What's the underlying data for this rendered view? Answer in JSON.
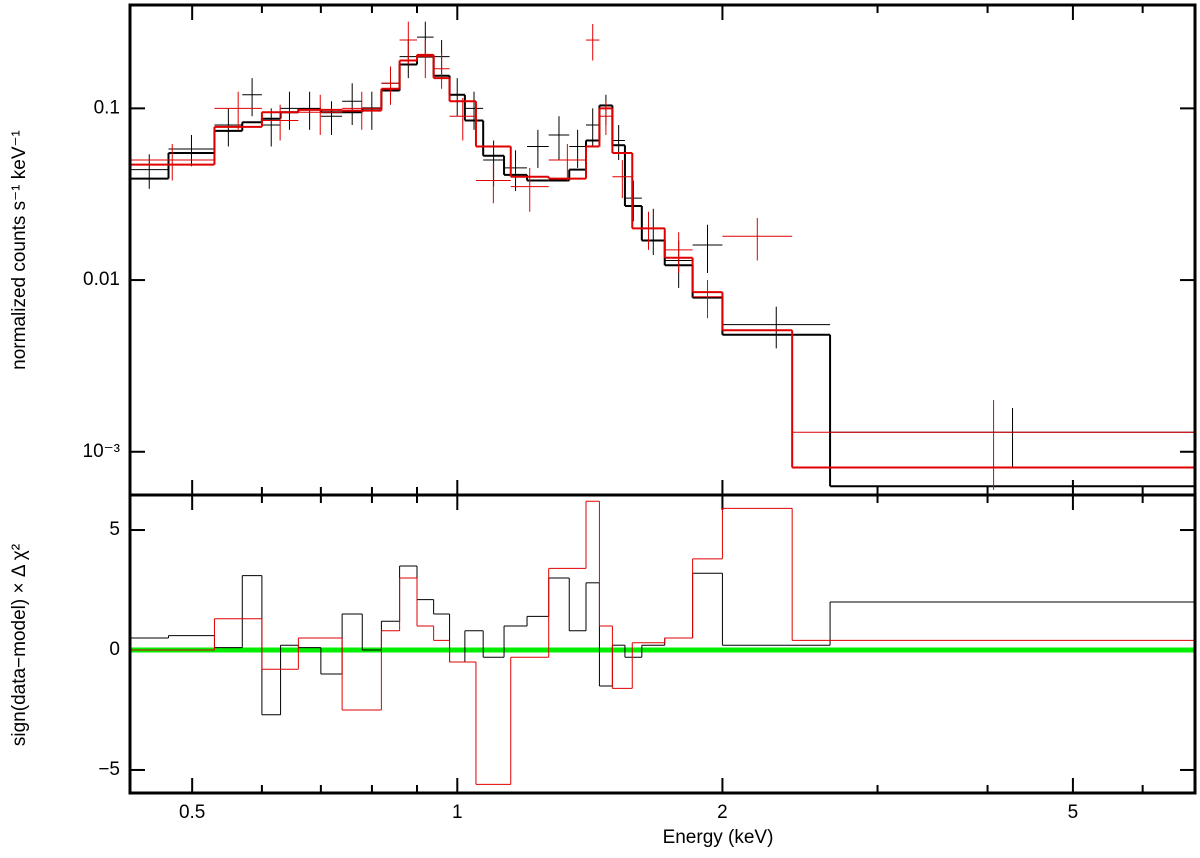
{
  "chart_data": [
    {
      "type": "spectrum",
      "ylabel": "normalized counts s⁻¹ keV⁻¹",
      "xscale": "log",
      "yscale": "log",
      "xlim": [
        0.425,
        6.88
      ],
      "xticks": [
        0.5,
        1,
        2,
        5
      ],
      "xminor": [
        0.6,
        0.7,
        0.8,
        0.9,
        3,
        4,
        6
      ],
      "ylim": [
        0.00056,
        0.4
      ],
      "yticks": [
        {
          "value": 0.001,
          "label": "10⁻³"
        },
        0.01,
        0.1
      ],
      "series": [
        {
          "color": "#000000",
          "edges": [
            0.425,
            0.47,
            0.53,
            0.57,
            0.6,
            0.63,
            0.66,
            0.7,
            0.74,
            0.78,
            0.82,
            0.86,
            0.9,
            0.94,
            0.98,
            1.02,
            1.07,
            1.13,
            1.2,
            1.27,
            1.34,
            1.4,
            1.45,
            1.5,
            1.55,
            1.62,
            1.72,
            1.85,
            2.0,
            2.65,
            6.88
          ],
          "values": [
            0.039,
            0.055,
            0.074,
            0.083,
            0.087,
            0.095,
            0.099,
            0.095,
            0.095,
            0.1,
            0.127,
            0.18,
            0.2,
            0.155,
            0.12,
            0.085,
            0.053,
            0.041,
            0.038,
            0.038,
            0.044,
            0.065,
            0.104,
            0.061,
            0.027,
            0.017,
            0.0122,
            0.0079,
            0.0048,
            0.00063
          ],
          "data": [
            0.044,
            0.058,
            0.08,
            0.12,
            0.08,
            0.1,
            0.1,
            0.09,
            0.11,
            0.1,
            0.14,
            0.2,
            0.26,
            0.2,
            0.12,
            0.1,
            0.05,
            0.045,
            0.06,
            0.07,
            0.06,
            0.08,
            0.1,
            0.065,
            0.03,
            0.02,
            0.013,
            0.016,
            0.0055,
            0.0013
          ],
          "data_err": [
            0.01,
            0.012,
            0.02,
            0.03,
            0.02,
            0.025,
            0.025,
            0.02,
            0.03,
            0.025,
            0.035,
            0.05,
            0.06,
            0.05,
            0.03,
            0.025,
            0.015,
            0.012,
            0.015,
            0.02,
            0.015,
            0.02,
            0.02,
            0.015,
            0.008,
            0.006,
            0.004,
            0.005,
            0.0015,
            0.0005
          ]
        },
        {
          "color": "#e00000",
          "edges": [
            0.425,
            0.53,
            0.6,
            0.66,
            0.74,
            0.82,
            0.86,
            0.9,
            0.94,
            0.98,
            1.05,
            1.15,
            1.27,
            1.4,
            1.45,
            1.5,
            1.58,
            1.72,
            1.85,
            2.0,
            2.4,
            6.88
          ],
          "values": [
            0.047,
            0.078,
            0.095,
            0.098,
            0.097,
            0.13,
            0.19,
            0.205,
            0.15,
            0.11,
            0.06,
            0.04,
            0.039,
            0.06,
            0.1,
            0.055,
            0.02,
            0.0135,
            0.0085,
            0.0051,
            0.00081
          ],
          "data": [
            0.05,
            0.1,
            0.085,
            0.095,
            0.1,
            0.14,
            0.25,
            0.2,
            0.17,
            0.09,
            0.038,
            0.035,
            0.05,
            0.25,
            0.09,
            0.04,
            0.02,
            0.015,
            0.008,
            0.018,
            0.0013
          ],
          "data_err": [
            0.012,
            0.025,
            0.02,
            0.025,
            0.025,
            0.035,
            0.07,
            0.05,
            0.04,
            0.025,
            0.01,
            0.01,
            0.012,
            0.06,
            0.02,
            0.01,
            0.005,
            0.004,
            0.002,
            0.005,
            0.0007
          ]
        }
      ]
    },
    {
      "type": "residuals",
      "xlabel": "Energy (keV)",
      "ylabel": "sign(data−model) × Δ χ²",
      "xscale": "log",
      "xlim": [
        0.425,
        6.88
      ],
      "xticks": [
        0.5,
        1,
        2,
        5
      ],
      "xminor": [
        0.6,
        0.7,
        0.8,
        0.9,
        3,
        4,
        6
      ],
      "ylim": [
        -5.96,
        6.46
      ],
      "yticks": [
        {
          "value": -5,
          "label": "−5"
        },
        0,
        5
      ],
      "reference_line": {
        "value": 0,
        "color": "#00ee00"
      },
      "series": [
        {
          "color": "#000000",
          "edges": [
            0.425,
            0.47,
            0.53,
            0.57,
            0.6,
            0.63,
            0.66,
            0.7,
            0.74,
            0.78,
            0.82,
            0.86,
            0.9,
            0.94,
            0.98,
            1.02,
            1.07,
            1.13,
            1.2,
            1.27,
            1.34,
            1.4,
            1.45,
            1.5,
            1.55,
            1.62,
            1.72,
            1.85,
            2.0,
            2.65,
            6.88
          ],
          "values": [
            0.5,
            0.6,
            0.1,
            3.1,
            -2.7,
            0.2,
            0.1,
            -1.0,
            1.5,
            0,
            1.2,
            3.5,
            2.1,
            1.5,
            -0.5,
            0.8,
            -0.3,
            1.0,
            1.4,
            3.0,
            0.8,
            2.8,
            -1.5,
            0.2,
            -0.3,
            0.2,
            0.5,
            3.2,
            0.2,
            2.0
          ]
        },
        {
          "color": "#e00000",
          "edges": [
            0.425,
            0.53,
            0.6,
            0.66,
            0.74,
            0.82,
            0.86,
            0.9,
            0.94,
            0.98,
            1.05,
            1.15,
            1.27,
            1.4,
            1.45,
            1.5,
            1.58,
            1.72,
            1.85,
            2.0,
            2.4,
            6.88
          ],
          "values": [
            0.0,
            1.3,
            -0.8,
            0.5,
            -2.5,
            0.8,
            3.0,
            1.0,
            0.4,
            -0.5,
            -5.6,
            -0.3,
            3.4,
            6.2,
            1.0,
            -1.6,
            0.3,
            0.5,
            3.8,
            5.9,
            0.4
          ]
        }
      ]
    }
  ]
}
